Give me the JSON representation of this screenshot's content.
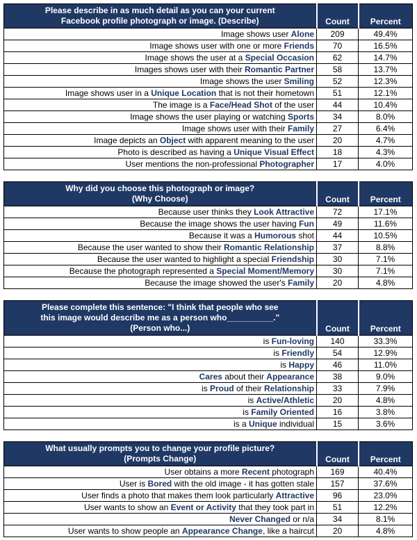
{
  "colors": {
    "header_bg": "#1f3864",
    "header_text": "#ffffff",
    "keyword_text": "#1f3864",
    "border": "#000000"
  },
  "tables": [
    {
      "title": "Please describe in as much detail as you can your current\nFacebook profile photograph or image. (Describe)",
      "count_header": "Count",
      "percent_header": "Percent",
      "rows": [
        {
          "label": [
            [
              "Image shows user ",
              0
            ],
            [
              "Alone",
              1
            ]
          ],
          "count": "209",
          "percent": "49.4%"
        },
        {
          "label": [
            [
              "Image shows user with one or more ",
              0
            ],
            [
              "Friends",
              1
            ]
          ],
          "count": "70",
          "percent": "16.5%"
        },
        {
          "label": [
            [
              "Image shows the user at a ",
              0
            ],
            [
              "Special Occasion",
              1
            ]
          ],
          "count": "62",
          "percent": "14.7%"
        },
        {
          "label": [
            [
              "Images shows user with their ",
              0
            ],
            [
              "Romantic Partner",
              1
            ]
          ],
          "count": "58",
          "percent": "13.7%"
        },
        {
          "label": [
            [
              "Image shows the user ",
              0
            ],
            [
              "Smiling",
              1
            ]
          ],
          "count": "52",
          "percent": "12.3%"
        },
        {
          "label": [
            [
              "Image shows user in a ",
              0
            ],
            [
              "Unique Location",
              1
            ],
            [
              " that is not their hometown",
              0
            ]
          ],
          "count": "51",
          "percent": "12.1%"
        },
        {
          "label": [
            [
              "The image is a ",
              0
            ],
            [
              "Face/Head Shot",
              1
            ],
            [
              " of the user",
              0
            ]
          ],
          "count": "44",
          "percent": "10.4%"
        },
        {
          "label": [
            [
              "Image shows the user playing or watching ",
              0
            ],
            [
              "Sports",
              1
            ]
          ],
          "count": "34",
          "percent": "8.0%"
        },
        {
          "label": [
            [
              "Image shows user with their ",
              0
            ],
            [
              "Family",
              1
            ]
          ],
          "count": "27",
          "percent": "6.4%"
        },
        {
          "label": [
            [
              "Image depicts an ",
              0
            ],
            [
              "Object",
              1
            ],
            [
              " with apparent meaning to the user",
              0
            ]
          ],
          "count": "20",
          "percent": "4.7%"
        },
        {
          "label": [
            [
              "Photo is described as having a ",
              0
            ],
            [
              "Unique Visual Effect",
              1
            ]
          ],
          "count": "18",
          "percent": "4.3%"
        },
        {
          "label": [
            [
              "User mentions the non-professional ",
              0
            ],
            [
              "Photographer",
              1
            ]
          ],
          "count": "17",
          "percent": "4.0%"
        }
      ]
    },
    {
      "title": "Why did you choose this photograph or image?\n(Why Choose)",
      "count_header": "Count",
      "percent_header": "Percent",
      "rows": [
        {
          "label": [
            [
              "Because user thinks they ",
              0
            ],
            [
              "Look Attractive",
              1
            ]
          ],
          "count": "72",
          "percent": "17.1%"
        },
        {
          "label": [
            [
              "Because the image shows the user having ",
              0
            ],
            [
              "Fun",
              1
            ]
          ],
          "count": "49",
          "percent": "11.6%"
        },
        {
          "label": [
            [
              "Because it was a ",
              0
            ],
            [
              "Humorous",
              1
            ],
            [
              " shot",
              0
            ]
          ],
          "count": "44",
          "percent": "10.5%"
        },
        {
          "label": [
            [
              "Because the user wanted to show their ",
              0
            ],
            [
              "Romantic Relationship",
              1
            ]
          ],
          "count": "37",
          "percent": "8.8%"
        },
        {
          "label": [
            [
              "Because the user wanted to highlight a special ",
              0
            ],
            [
              "Friendship",
              1
            ]
          ],
          "count": "30",
          "percent": "7.1%"
        },
        {
          "label": [
            [
              "Because the photograph represented a ",
              0
            ],
            [
              "Special Moment/Memory",
              1
            ]
          ],
          "count": "30",
          "percent": "7.1%"
        },
        {
          "label": [
            [
              "Because the image showed the user's ",
              0
            ],
            [
              "Family",
              1
            ]
          ],
          "count": "20",
          "percent": "4.8%"
        }
      ]
    },
    {
      "title": "Please complete this sentence: \"I think that people who see\nthis image would describe me as a person who__________.\"\n(Person who...)",
      "count_header": "Count",
      "percent_header": "Percent",
      "rows": [
        {
          "label": [
            [
              "is ",
              0
            ],
            [
              "Fun-loving",
              1
            ]
          ],
          "count": "140",
          "percent": "33.3%"
        },
        {
          "label": [
            [
              "is ",
              0
            ],
            [
              "Friendly",
              1
            ]
          ],
          "count": "54",
          "percent": "12.9%"
        },
        {
          "label": [
            [
              "is ",
              0
            ],
            [
              "Happy",
              1
            ]
          ],
          "count": "46",
          "percent": "11.0%"
        },
        {
          "label": [
            [
              "Cares",
              1
            ],
            [
              " about their ",
              0
            ],
            [
              "Appearance",
              1
            ]
          ],
          "count": "38",
          "percent": "9.0%"
        },
        {
          "label": [
            [
              "is ",
              0
            ],
            [
              "Proud",
              1
            ],
            [
              " of their ",
              0
            ],
            [
              "Relationship",
              1
            ]
          ],
          "count": "33",
          "percent": "7.9%"
        },
        {
          "label": [
            [
              "is ",
              0
            ],
            [
              "Active/Athletic",
              1
            ]
          ],
          "count": "20",
          "percent": "4.8%"
        },
        {
          "label": [
            [
              "is ",
              0
            ],
            [
              "Family Oriented",
              1
            ]
          ],
          "count": "16",
          "percent": "3.8%"
        },
        {
          "label": [
            [
              "is a ",
              0
            ],
            [
              "Unique",
              1
            ],
            [
              " individual",
              0
            ]
          ],
          "count": "15",
          "percent": "3.6%"
        }
      ]
    },
    {
      "title": "What usually prompts you to change your profile picture?\n(Prompts Change)",
      "count_header": "Count",
      "percent_header": "Percent",
      "rows": [
        {
          "label": [
            [
              "User obtains a more ",
              0
            ],
            [
              "Recent",
              1
            ],
            [
              " photograph",
              0
            ]
          ],
          "count": "169",
          "percent": "40.4%"
        },
        {
          "label": [
            [
              "User is ",
              0
            ],
            [
              "Bored",
              1
            ],
            [
              " with the old image - it has gotten stale",
              0
            ]
          ],
          "count": "157",
          "percent": "37.6%"
        },
        {
          "label": [
            [
              "User finds a photo that makes them look particularly ",
              0
            ],
            [
              "Attractive",
              1
            ]
          ],
          "count": "96",
          "percent": "23.0%"
        },
        {
          "label": [
            [
              "User wants to show an ",
              0
            ],
            [
              "Event or Activity",
              1
            ],
            [
              " that they took part in",
              0
            ]
          ],
          "count": "51",
          "percent": "12.2%"
        },
        {
          "label": [
            [
              "Never Changed",
              1
            ],
            [
              " or n/a",
              0
            ]
          ],
          "count": "34",
          "percent": "8.1%"
        },
        {
          "label": [
            [
              "User wants to show people an ",
              0
            ],
            [
              "Appearance Change",
              1
            ],
            [
              ", like a haircut",
              0
            ]
          ],
          "count": "20",
          "percent": "4.8%"
        }
      ]
    }
  ]
}
